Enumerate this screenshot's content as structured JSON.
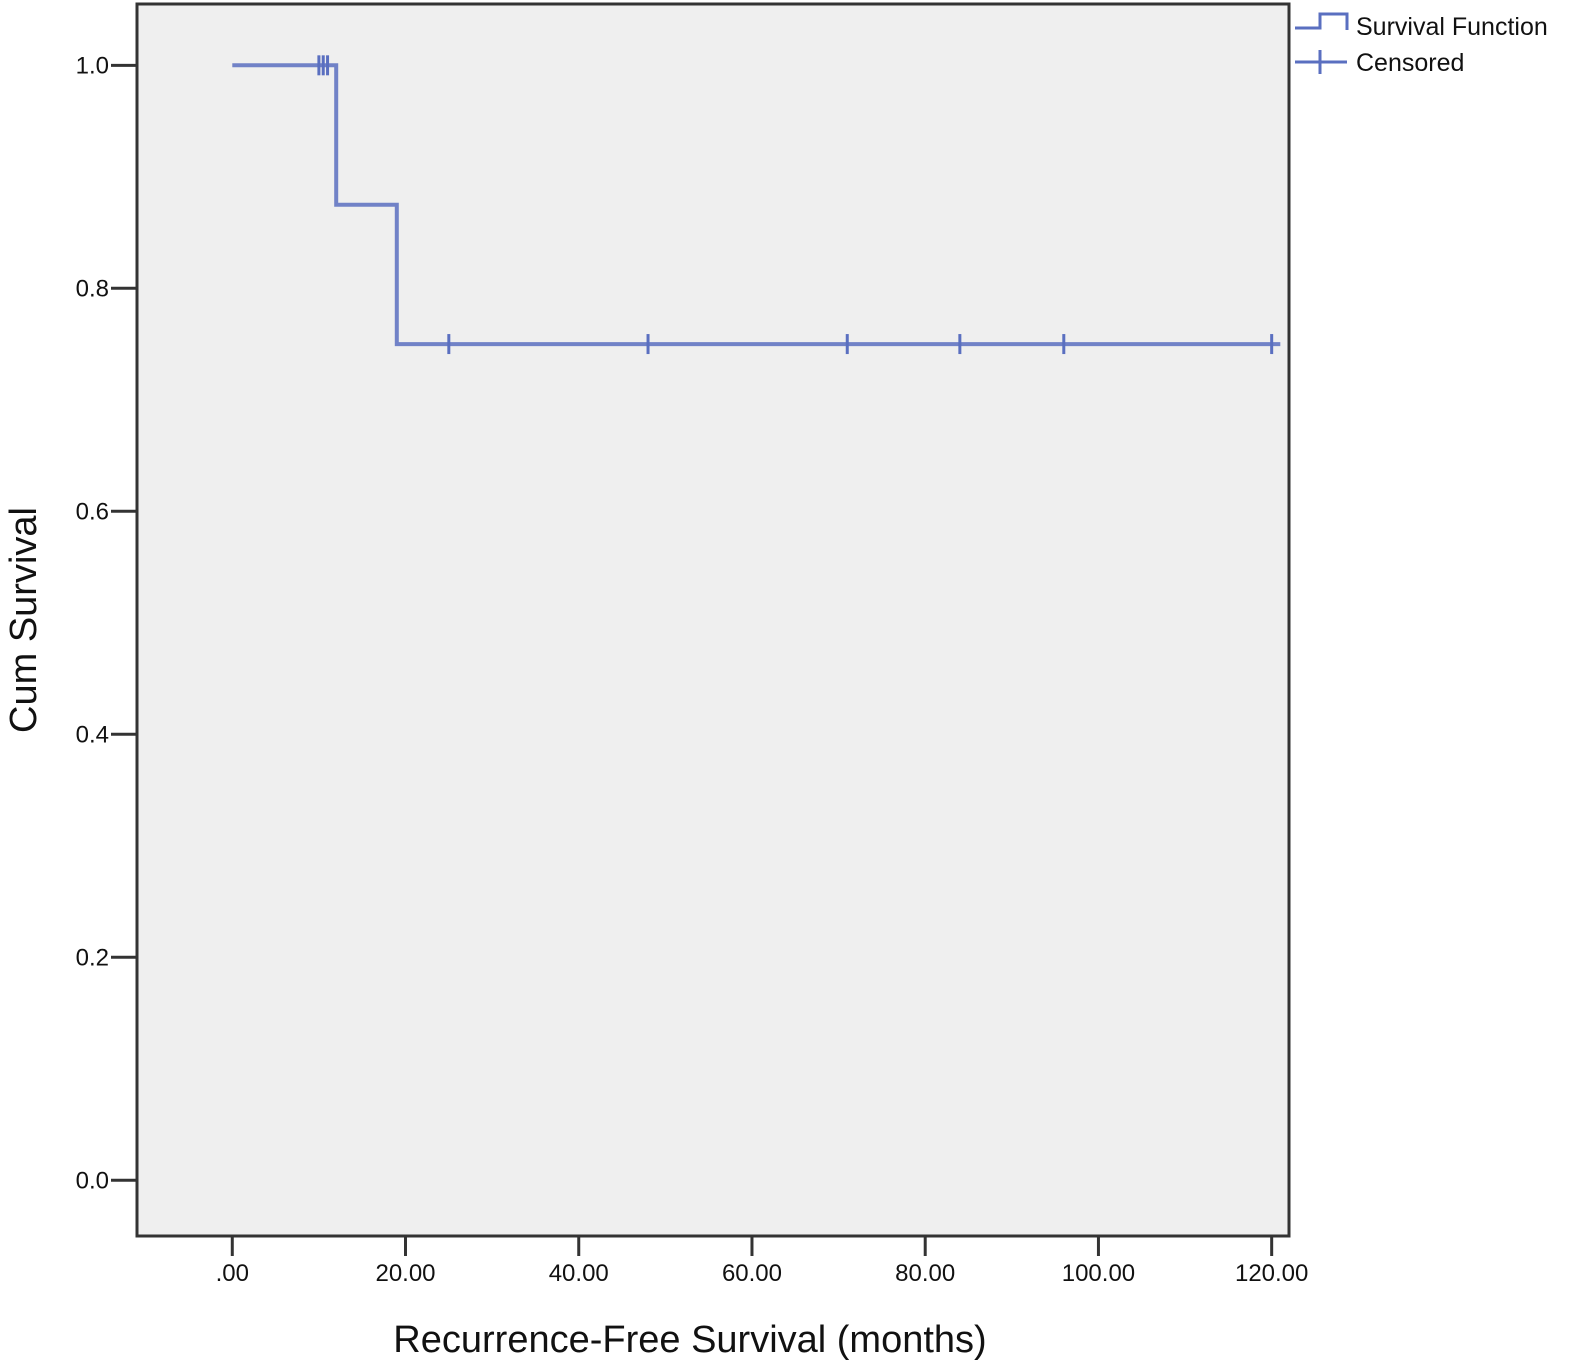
{
  "chart_data": {
    "type": "line",
    "subtype": "kaplan-meier step",
    "xlabel": "Recurrence-Free Survival (months)",
    "ylabel": "Cum Survival",
    "xlim": [
      -11,
      122
    ],
    "ylim": [
      -0.05,
      1.055
    ],
    "x_ticks": [
      0,
      20,
      40,
      60,
      80,
      100,
      120
    ],
    "x_tick_labels": [
      ".00",
      "20.00",
      "40.00",
      "60.00",
      "80.00",
      "100.00",
      "120.00"
    ],
    "y_ticks": [
      0.0,
      0.2,
      0.4,
      0.6,
      0.8,
      1.0
    ],
    "y_tick_labels": [
      "0.0",
      "0.2",
      "0.4",
      "0.6",
      "0.8",
      "1.0"
    ],
    "grid": false,
    "plot_background": "#efefef",
    "line_color": "#5a6fc0",
    "legend_position": "top-right, outside plot",
    "series": [
      {
        "name": "Survival Function",
        "kind": "step",
        "x": [
          0,
          12,
          12,
          19,
          19,
          121
        ],
        "y": [
          1.0,
          1.0,
          0.875,
          0.875,
          0.75,
          0.75
        ]
      },
      {
        "name": "Censored",
        "kind": "censor-marks",
        "x": [
          10,
          10.5,
          11,
          25,
          48,
          71,
          84,
          96,
          120
        ],
        "y": [
          1.0,
          1.0,
          1.0,
          0.75,
          0.75,
          0.75,
          0.75,
          0.75,
          0.75
        ]
      }
    ],
    "legend": [
      {
        "label": "Survival Function",
        "symbol": "step"
      },
      {
        "label": "Censored",
        "symbol": "plus"
      }
    ]
  }
}
